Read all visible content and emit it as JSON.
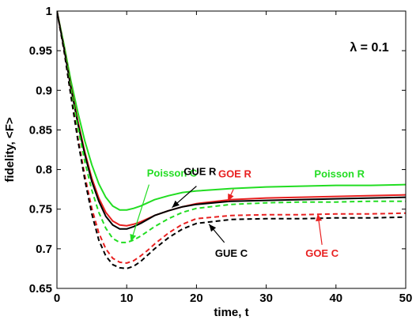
{
  "chart_data": {
    "type": "line",
    "xlabel": "time, t",
    "ylabel": "fidelity, <F>",
    "xlim": [
      0,
      50
    ],
    "ylim": [
      0.65,
      1.0
    ],
    "xticks": [
      0,
      10,
      20,
      30,
      40,
      50
    ],
    "yticks": [
      0.65,
      0.7,
      0.75,
      0.8,
      0.85,
      0.9,
      0.95,
      1.0
    ],
    "ytick_labels": [
      "0.65",
      "0.7",
      "0.75",
      "0.8",
      "0.85",
      "0.9",
      "0.95",
      "1"
    ],
    "grid": false,
    "parameter_label": "λ = 0.1",
    "series": [
      {
        "name": "Poisson R",
        "color": "#22dd22",
        "dash": "solid",
        "x": [
          0,
          1,
          2,
          3,
          4,
          5,
          6,
          7,
          8,
          9,
          10,
          11,
          12,
          13,
          14,
          16,
          18,
          20,
          25,
          30,
          35,
          40,
          45,
          50
        ],
        "y": [
          1.0,
          0.958,
          0.912,
          0.872,
          0.836,
          0.806,
          0.782,
          0.765,
          0.754,
          0.749,
          0.749,
          0.751,
          0.754,
          0.758,
          0.762,
          0.767,
          0.771,
          0.773,
          0.776,
          0.778,
          0.779,
          0.78,
          0.78,
          0.781
        ]
      },
      {
        "name": "GOE R",
        "color": "#e82020",
        "dash": "solid",
        "x": [
          0,
          1,
          2,
          3,
          4,
          5,
          6,
          7,
          8,
          9,
          10,
          11,
          12,
          13,
          14,
          16,
          18,
          20,
          25,
          30,
          35,
          40,
          45,
          50
        ],
        "y": [
          1.0,
          0.955,
          0.905,
          0.861,
          0.822,
          0.789,
          0.764,
          0.746,
          0.735,
          0.73,
          0.729,
          0.731,
          0.734,
          0.738,
          0.742,
          0.748,
          0.753,
          0.757,
          0.762,
          0.764,
          0.765,
          0.766,
          0.767,
          0.768
        ]
      },
      {
        "name": "GUE R",
        "color": "#000000",
        "dash": "solid",
        "x": [
          0,
          1,
          2,
          3,
          4,
          5,
          6,
          7,
          8,
          9,
          10,
          11,
          12,
          13,
          14,
          16,
          18,
          20,
          25,
          30,
          35,
          40,
          45,
          50
        ],
        "y": [
          1.0,
          0.954,
          0.903,
          0.858,
          0.819,
          0.785,
          0.76,
          0.741,
          0.73,
          0.725,
          0.725,
          0.728,
          0.732,
          0.737,
          0.742,
          0.748,
          0.753,
          0.756,
          0.76,
          0.761,
          0.762,
          0.763,
          0.764,
          0.765
        ]
      },
      {
        "name": "Poisson C",
        "color": "#22dd22",
        "dash": "dashed",
        "x": [
          0,
          1,
          2,
          3,
          4,
          5,
          6,
          7,
          8,
          9,
          10,
          11,
          12,
          13,
          14,
          16,
          18,
          20,
          25,
          30,
          35,
          40,
          45,
          50
        ],
        "y": [
          1.0,
          0.954,
          0.901,
          0.853,
          0.81,
          0.774,
          0.746,
          0.726,
          0.713,
          0.708,
          0.708,
          0.711,
          0.716,
          0.722,
          0.728,
          0.738,
          0.746,
          0.751,
          0.756,
          0.758,
          0.759,
          0.759,
          0.76,
          0.76
        ]
      },
      {
        "name": "GOE C",
        "color": "#e82020",
        "dash": "dashed",
        "x": [
          0,
          1,
          2,
          3,
          4,
          5,
          6,
          7,
          8,
          9,
          10,
          11,
          12,
          13,
          14,
          16,
          18,
          20,
          25,
          30,
          35,
          40,
          45,
          50
        ],
        "y": [
          1.0,
          0.951,
          0.894,
          0.84,
          0.792,
          0.751,
          0.72,
          0.7,
          0.688,
          0.683,
          0.682,
          0.685,
          0.691,
          0.698,
          0.706,
          0.72,
          0.731,
          0.738,
          0.742,
          0.743,
          0.743,
          0.744,
          0.744,
          0.745
        ]
      },
      {
        "name": "GUE C",
        "color": "#000000",
        "dash": "dashed",
        "x": [
          0,
          1,
          2,
          3,
          4,
          5,
          6,
          7,
          8,
          9,
          10,
          11,
          12,
          13,
          14,
          16,
          18,
          20,
          25,
          30,
          35,
          40,
          45,
          50
        ],
        "y": [
          1.0,
          0.951,
          0.893,
          0.837,
          0.787,
          0.744,
          0.711,
          0.691,
          0.68,
          0.676,
          0.675,
          0.678,
          0.684,
          0.692,
          0.7,
          0.714,
          0.725,
          0.732,
          0.737,
          0.738,
          0.738,
          0.739,
          0.739,
          0.74
        ]
      }
    ],
    "annotations": [
      {
        "text": "Poisson C",
        "color": "#22dd22",
        "text_at": [
          16.5,
          0.791
        ],
        "arrow_from": [
          13.2,
          0.781
        ],
        "arrow_to": [
          10.6,
          0.709
        ]
      },
      {
        "text": "GUE R",
        "color": "#000000",
        "text_at": [
          20.5,
          0.793
        ],
        "arrow_from": [
          20.0,
          0.779
        ],
        "arrow_to": [
          16.5,
          0.752
        ]
      },
      {
        "text": "GOE R",
        "color": "#e82020",
        "text_at": [
          25.5,
          0.79
        ],
        "arrow_from": [
          25.3,
          0.775
        ],
        "arrow_to": [
          24.5,
          0.76
        ]
      },
      {
        "text": "Poisson R",
        "color": "#22dd22",
        "text_at": [
          40.5,
          0.79
        ],
        "arrow_from": null,
        "arrow_to": null
      },
      {
        "text": "GUE C",
        "color": "#000000",
        "text_at": [
          25.0,
          0.69
        ],
        "arrow_from": [
          24.0,
          0.708
        ],
        "arrow_to": [
          21.8,
          0.731
        ]
      },
      {
        "text": "GOE C",
        "color": "#e82020",
        "text_at": [
          38.0,
          0.69
        ],
        "arrow_from": [
          38.0,
          0.705
        ],
        "arrow_to": [
          37.4,
          0.744
        ]
      }
    ]
  }
}
